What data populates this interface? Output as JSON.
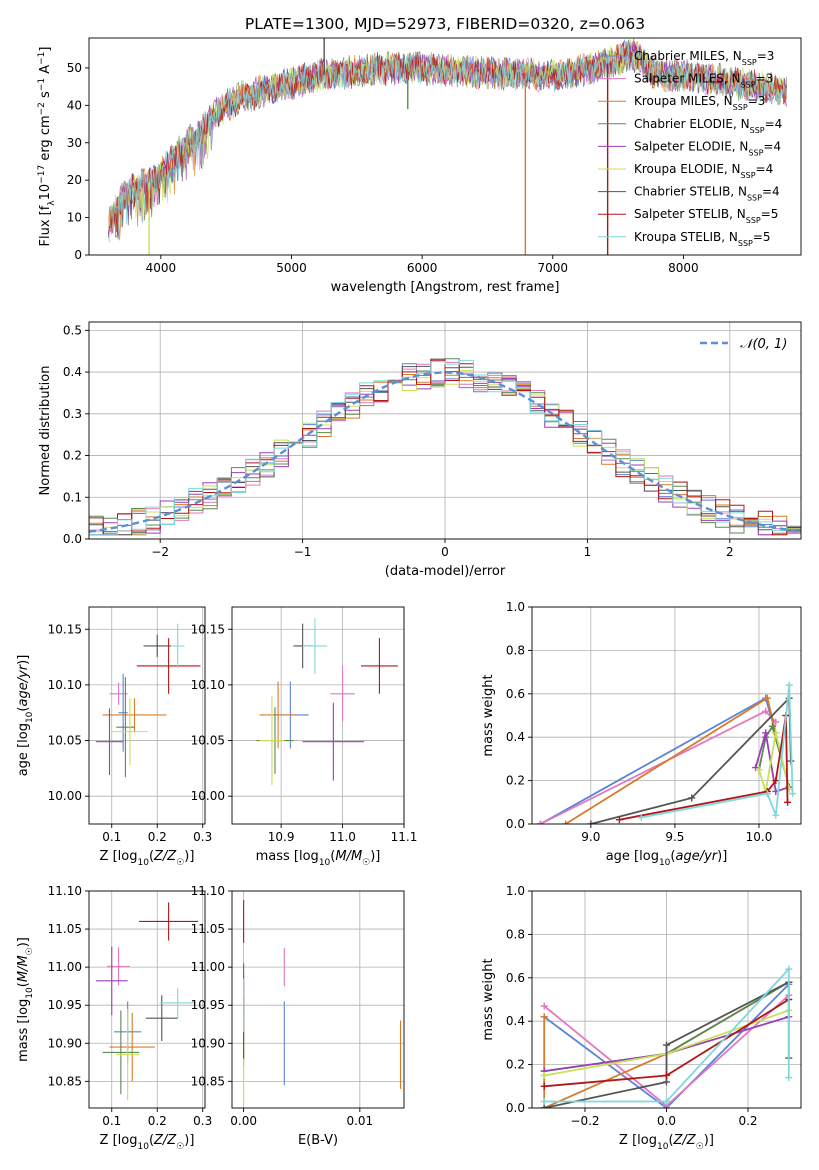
{
  "figure_title": "PLATE=1300, MJD=52973, FIBERID=0320, z=0.063",
  "models": [
    {
      "name": "Chabrier MILES",
      "nssp": "3",
      "color": "#5b84d6"
    },
    {
      "name": "Salpeter MILES",
      "nssp": "3",
      "color": "#e377c2"
    },
    {
      "name": "Kroupa MILES",
      "nssp": "3",
      "color": "#d97a2b"
    },
    {
      "name": "Chabrier ELODIE",
      "nssp": "4",
      "color": "#5a8a52"
    },
    {
      "name": "Salpeter ELODIE",
      "nssp": "4",
      "color": "#9b3fb5"
    },
    {
      "name": "Kroupa ELODIE",
      "nssp": "4",
      "color": "#c9e05a"
    },
    {
      "name": "Chabrier STELIB",
      "nssp": "4",
      "color": "#555555"
    },
    {
      "name": "Salpeter STELIB",
      "nssp": "5",
      "color": "#b01818"
    },
    {
      "name": "Kroupa STELIB",
      "nssp": "5",
      "color": "#7fd8dc"
    }
  ],
  "chart_data": [
    {
      "id": "spectrum",
      "type": "line",
      "title": "PLATE=1300, MJD=52973, FIBERID=0320, z=0.063",
      "xlabel": "wavelength [Angstrom, rest frame]",
      "ylabel": "Flux [f_λ 10^-17 erg cm^-2 s^-1 A^-1]",
      "xlim": [
        3450,
        8900
      ],
      "ylim": [
        0,
        58
      ],
      "xticks": [
        4000,
        5000,
        6000,
        7000,
        8000
      ],
      "yticks": [
        0,
        10,
        20,
        30,
        40,
        50
      ],
      "grid": false,
      "legend": "upper right",
      "continuum": [
        [
          3600,
          9
        ],
        [
          3700,
          15
        ],
        [
          3800,
          18
        ],
        [
          3900,
          19
        ],
        [
          4000,
          22
        ],
        [
          4100,
          26
        ],
        [
          4200,
          30
        ],
        [
          4300,
          32
        ],
        [
          4400,
          37
        ],
        [
          4500,
          40
        ],
        [
          4600,
          42
        ],
        [
          4800,
          44
        ],
        [
          5000,
          46
        ],
        [
          5200,
          48
        ],
        [
          5500,
          49
        ],
        [
          5800,
          50
        ],
        [
          6000,
          50
        ],
        [
          6300,
          49
        ],
        [
          6600,
          48.5
        ],
        [
          6900,
          48
        ],
        [
          7100,
          48.5
        ],
        [
          7300,
          50
        ],
        [
          7500,
          52
        ],
        [
          7600,
          54
        ],
        [
          7700,
          51
        ],
        [
          7800,
          48
        ],
        [
          8000,
          48
        ],
        [
          8200,
          47
        ],
        [
          8400,
          46
        ],
        [
          8600,
          45
        ],
        [
          8790,
          44
        ]
      ],
      "spikes": [
        {
          "x": 3910,
          "y": 0
        },
        {
          "x": 5250,
          "y": 58
        },
        {
          "x": 5890,
          "y": 39
        },
        {
          "x": 6790,
          "y": 0
        },
        {
          "x": 7420,
          "y": 0
        }
      ]
    },
    {
      "id": "residuals",
      "type": "histogram",
      "xlabel": "(data-model)/error",
      "ylabel": "Normed distribution",
      "xlim": [
        -2.5,
        2.5
      ],
      "ylim": [
        0,
        0.52
      ],
      "xticks": [
        -2,
        -1,
        0,
        1,
        2
      ],
      "yticks": [
        0.0,
        0.1,
        0.2,
        0.3,
        0.4,
        0.5
      ],
      "grid": true,
      "legend": "upper right",
      "reference_curve": "N(0,1)",
      "reference_label": "𝒩(0, 1)",
      "bin_width": 0.1
    },
    {
      "id": "age_vs_Z",
      "type": "errorbar",
      "xlabel": "Z [log10(Z/Z☉)]",
      "ylabel": "age  [log10(age/yr)]",
      "xlim": [
        0.05,
        0.305
      ],
      "ylim": [
        9.975,
        10.17
      ],
      "xticks": [
        0.1,
        0.2,
        0.3
      ],
      "yticks": [
        10.0,
        10.05,
        10.1,
        10.15
      ],
      "grid": true,
      "points": [
        {
          "x": 0.125,
          "y": 10.075,
          "xerr": 0.01,
          "yerr": 0.035
        },
        {
          "x": 0.115,
          "y": 10.092,
          "xerr": 0.02,
          "yerr": 0.01
        },
        {
          "x": 0.15,
          "y": 10.073,
          "xerr": 0.07,
          "yerr": 0.015
        },
        {
          "x": 0.13,
          "y": 10.062,
          "xerr": 0.02,
          "yerr": 0.045
        },
        {
          "x": 0.095,
          "y": 10.049,
          "xerr": 0.03,
          "yerr": 0.03
        },
        {
          "x": 0.14,
          "y": 10.058,
          "xerr": 0.04,
          "yerr": 0.03
        },
        {
          "x": 0.2,
          "y": 10.135,
          "xerr": 0.03,
          "yerr": 0.01
        },
        {
          "x": 0.225,
          "y": 10.117,
          "xerr": 0.07,
          "yerr": 0.025
        },
        {
          "x": 0.245,
          "y": 10.135,
          "xerr": 0.015,
          "yerr": 0.02
        }
      ]
    },
    {
      "id": "age_vs_mass",
      "type": "errorbar",
      "xlabel": "mass [log10(M/M☉)]",
      "ylabel": "",
      "xlim": [
        10.82,
        11.1
      ],
      "ylim": [
        9.975,
        10.17
      ],
      "xticks": [
        10.9,
        11.0,
        11.1
      ],
      "yticks": [
        10.0,
        10.05,
        10.1,
        10.15
      ],
      "grid": true,
      "points": [
        {
          "x": 10.915,
          "y": 10.073,
          "xerr": 0.03,
          "yerr": 0.03
        },
        {
          "x": 11.0,
          "y": 10.092,
          "xerr": 0.02,
          "yerr": 0.025
        },
        {
          "x": 10.895,
          "y": 10.073,
          "xerr": 0.03,
          "yerr": 0.03
        },
        {
          "x": 10.89,
          "y": 10.05,
          "xerr": 0.03,
          "yerr": 0.03
        },
        {
          "x": 10.985,
          "y": 10.049,
          "xerr": 0.05,
          "yerr": 0.035
        },
        {
          "x": 10.885,
          "y": 10.05,
          "xerr": 0.02,
          "yerr": 0.04
        },
        {
          "x": 10.935,
          "y": 10.135,
          "xerr": 0.015,
          "yerr": 0.02
        },
        {
          "x": 11.06,
          "y": 10.117,
          "xerr": 0.03,
          "yerr": 0.025
        },
        {
          "x": 10.955,
          "y": 10.135,
          "xerr": 0.02,
          "yerr": 0.025
        }
      ]
    },
    {
      "id": "massweight_vs_age",
      "type": "line",
      "xlabel": "age  [log10(age/yr)]",
      "ylabel": "mass weight",
      "xlim": [
        8.65,
        10.25
      ],
      "ylim": [
        0,
        1.0
      ],
      "xticks": [
        9.0,
        9.5,
        10.0
      ],
      "yticks": [
        0.0,
        0.2,
        0.4,
        0.6,
        0.8,
        1.0
      ],
      "grid": true,
      "series": [
        {
          "model": 0,
          "x": [
            8.7,
            10.04,
            10.1
          ],
          "y": [
            0.0,
            0.58,
            0.42
          ]
        },
        {
          "model": 1,
          "x": [
            8.7,
            10.04,
            10.1
          ],
          "y": [
            0.0,
            0.52,
            0.47
          ]
        },
        {
          "model": 2,
          "x": [
            8.85,
            10.05,
            10.1
          ],
          "y": [
            0.0,
            0.58,
            0.42
          ]
        },
        {
          "model": 3,
          "x": [
            10.0,
            10.04,
            10.08,
            10.18
          ],
          "y": [
            0.25,
            0.4,
            0.45,
            0.17
          ]
        },
        {
          "model": 4,
          "x": [
            9.98,
            10.04,
            10.1,
            10.18
          ],
          "y": [
            0.26,
            0.42,
            0.15,
            0.17
          ]
        },
        {
          "model": 5,
          "x": [
            10.0,
            10.04,
            10.1,
            10.18
          ],
          "y": [
            0.25,
            0.15,
            0.42,
            0.16
          ]
        },
        {
          "model": 6,
          "x": [
            9.0,
            9.6,
            10.18,
            10.19
          ],
          "y": [
            0.0,
            0.12,
            0.58,
            0.29
          ]
        },
        {
          "model": 7,
          "x": [
            9.17,
            10.05,
            10.1,
            10.16,
            10.17
          ],
          "y": [
            0.02,
            0.15,
            0.2,
            0.5,
            0.1
          ]
        },
        {
          "model": 8,
          "x": [
            9.3,
            10.05,
            10.1,
            10.18,
            10.2
          ],
          "y": [
            0.03,
            0.14,
            0.04,
            0.64,
            0.14
          ]
        }
      ]
    },
    {
      "id": "mass_vs_Z",
      "type": "errorbar",
      "xlabel": "Z [log10(Z/Z☉)]",
      "ylabel": "mass [log10(M/M☉)]",
      "xlim": [
        0.05,
        0.305
      ],
      "ylim": [
        10.815,
        11.1
      ],
      "xticks": [
        0.1,
        0.2,
        0.3
      ],
      "yticks": [
        10.85,
        10.9,
        10.95,
        11.0,
        11.05,
        11.1
      ],
      "grid": true,
      "points": [
        {
          "x": 0.135,
          "y": 10.915,
          "xerr": 0.03,
          "yerr": 0.04
        },
        {
          "x": 0.115,
          "y": 11.001,
          "xerr": 0.025,
          "yerr": 0.025
        },
        {
          "x": 0.145,
          "y": 10.895,
          "xerr": 0.05,
          "yerr": 0.045
        },
        {
          "x": 0.12,
          "y": 10.888,
          "xerr": 0.04,
          "yerr": 0.055
        },
        {
          "x": 0.1,
          "y": 10.982,
          "xerr": 0.035,
          "yerr": 0.045
        },
        {
          "x": 0.135,
          "y": 10.885,
          "xerr": 0.025,
          "yerr": 0.06
        },
        {
          "x": 0.21,
          "y": 10.933,
          "xerr": 0.035,
          "yerr": 0.03
        },
        {
          "x": 0.225,
          "y": 11.06,
          "xerr": 0.065,
          "yerr": 0.025
        },
        {
          "x": 0.245,
          "y": 10.953,
          "xerr": 0.04,
          "yerr": 0.02
        }
      ]
    },
    {
      "id": "mass_vs_EBV",
      "type": "errorbar",
      "xlabel": "E(B-V)",
      "ylabel": "",
      "xlim": [
        -0.001,
        0.0138
      ],
      "ylim": [
        10.815,
        11.1
      ],
      "xticks": [
        0.0,
        0.01
      ],
      "yticks": [
        10.85,
        10.9,
        10.95,
        11.0,
        11.05,
        11.1
      ],
      "grid": true,
      "points": [
        {
          "x": 0.0035,
          "y": 10.9,
          "xerr": 0,
          "yerr": 0.055
        },
        {
          "x": 0.0035,
          "y": 11.0,
          "xerr": 0,
          "yerr": 0.025
        },
        {
          "x": 0.0135,
          "y": 10.885,
          "xerr": 0,
          "yerr": 0.045
        },
        {
          "x": 0.0,
          "y": 10.93,
          "xerr": 0,
          "yerr": 0.06
        },
        {
          "x": 0.0,
          "y": 10.97,
          "xerr": 0,
          "yerr": 0.035
        },
        {
          "x": 0.0,
          "y": 10.88,
          "xerr": 0,
          "yerr": 0.06
        },
        {
          "x": 0.0,
          "y": 10.92,
          "xerr": 0,
          "yerr": 0.04
        },
        {
          "x": 0.0,
          "y": 11.06,
          "xerr": 0,
          "yerr": 0.028
        },
        {
          "x": 0.0,
          "y": 10.95,
          "xerr": 0,
          "yerr": 0.035
        }
      ]
    },
    {
      "id": "massweight_vs_Z",
      "type": "line",
      "xlabel": "Z [log10(Z/Z☉)]",
      "ylabel": "mass weight",
      "xlim": [
        -0.33,
        0.33
      ],
      "ylim": [
        0,
        1.0
      ],
      "xticks": [
        -0.2,
        0.0,
        0.2
      ],
      "yticks": [
        0.0,
        0.2,
        0.4,
        0.6,
        0.8,
        1.0
      ],
      "grid": true,
      "series": [
        {
          "model": 0,
          "x": [
            -0.3,
            0.0,
            0.3
          ],
          "y": [
            0.42,
            0.0,
            0.57
          ]
        },
        {
          "model": 1,
          "x": [
            -0.3,
            0.0,
            0.3
          ],
          "y": [
            0.47,
            0.01,
            0.52
          ]
        },
        {
          "model": 2,
          "x": [
            -0.3,
            -0.3,
            0.0,
            0.3
          ],
          "y": [
            0.42,
            0.0,
            0.25,
            0.58
          ]
        },
        {
          "model": 3,
          "x": [
            -0.3,
            0.0,
            0.3
          ],
          "y": [
            0.17,
            0.25,
            0.58
          ]
        },
        {
          "model": 4,
          "x": [
            -0.3,
            0.0,
            0.3
          ],
          "y": [
            0.17,
            0.25,
            0.42
          ]
        },
        {
          "model": 5,
          "x": [
            -0.3,
            0.0,
            0.3
          ],
          "y": [
            0.15,
            0.25,
            0.45
          ]
        },
        {
          "model": 6,
          "x": [
            -0.3,
            0.0,
            0.0,
            0.3,
            0.3
          ],
          "y": [
            0.0,
            0.12,
            0.29,
            0.58,
            0.23
          ]
        },
        {
          "model": 7,
          "x": [
            -0.3,
            0.0,
            0.3
          ],
          "y": [
            0.1,
            0.15,
            0.5
          ]
        },
        {
          "model": 8,
          "x": [
            -0.3,
            0.0,
            0.3,
            0.3
          ],
          "y": [
            0.03,
            0.03,
            0.64,
            0.14
          ]
        }
      ]
    }
  ]
}
